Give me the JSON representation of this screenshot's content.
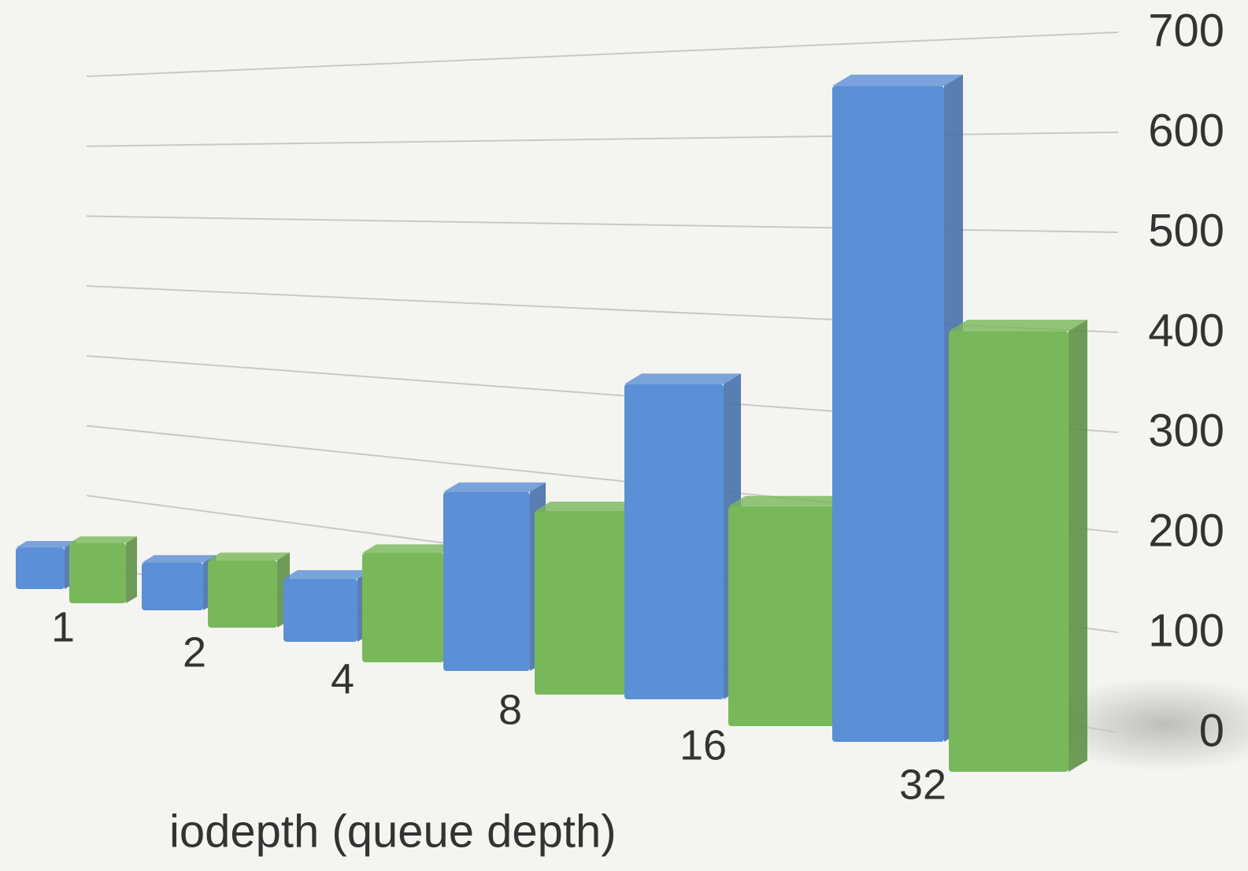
{
  "chart_data": {
    "type": "bar3d",
    "xlabel": "iodepth (queue depth)",
    "categories": [
      "1",
      "2",
      "4",
      "8",
      "16",
      "32"
    ],
    "series": [
      {
        "color": "#5b8fd6",
        "values": [
          55,
          60,
          75,
          200,
          330,
          640
        ]
      },
      {
        "color": "#78b85a",
        "values": [
          80,
          85,
          130,
          205,
          230,
          430
        ]
      }
    ],
    "ylim": [
      0,
      700
    ],
    "yticks": [
      0,
      100,
      200,
      300,
      400,
      500,
      600,
      700
    ],
    "grid": true
  }
}
